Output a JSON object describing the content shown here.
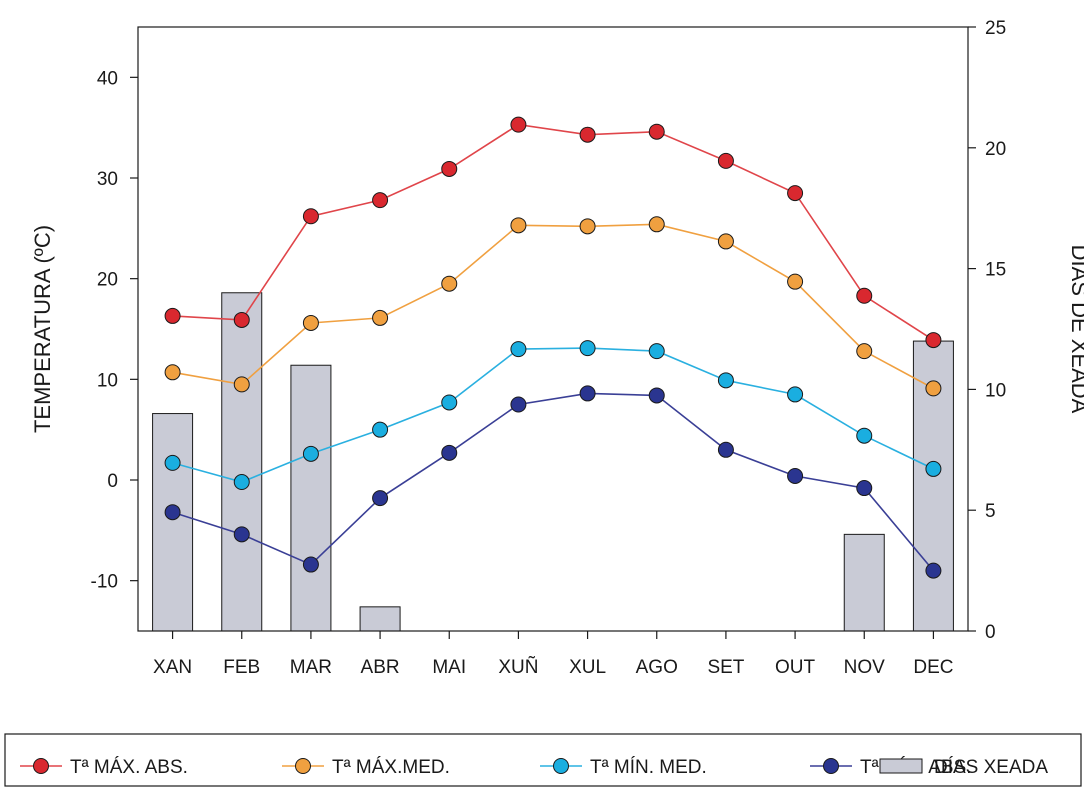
{
  "chart_data": {
    "type": "bar+line",
    "categories": [
      "XAN",
      "FEB",
      "MAR",
      "ABR",
      "MAI",
      "XUÑ",
      "XUL",
      "AGO",
      "SET",
      "OUT",
      "NOV",
      "DEC"
    ],
    "ylabel": "TEMPERATURA (ºC)",
    "y2label": "DÍAS DE XEADA",
    "ylim": [
      -15,
      45
    ],
    "y2lim": [
      0,
      25
    ],
    "yticks": [
      -10,
      0,
      10,
      20,
      30,
      40
    ],
    "y2ticks": [
      0,
      5,
      10,
      15,
      20,
      25
    ],
    "bars": {
      "name": "DÍAS XEADA",
      "axis": "right",
      "color": "#c9cbd6",
      "values": [
        9,
        14,
        11,
        1,
        0,
        0,
        0,
        0,
        0,
        0,
        4,
        12
      ]
    },
    "series": [
      {
        "name": "Tª MÁX. ABS.",
        "color": "#d9282f",
        "line_color": "#e0454a",
        "values": [
          16.3,
          15.9,
          26.2,
          27.8,
          30.9,
          35.3,
          34.3,
          34.6,
          31.7,
          28.5,
          18.3,
          13.9
        ]
      },
      {
        "name": "Tª MÁX.MED.",
        "color": "#f0a040",
        "line_color": "#f0a040",
        "values": [
          10.7,
          9.5,
          15.6,
          16.1,
          19.5,
          25.3,
          25.2,
          25.4,
          23.7,
          19.7,
          12.8,
          9.1
        ]
      },
      {
        "name": "Tª MÍN. MED.",
        "color": "#1aaee0",
        "line_color": "#2ab0e0",
        "values": [
          1.7,
          -0.2,
          2.6,
          5.0,
          7.7,
          13.0,
          13.1,
          12.8,
          9.9,
          8.5,
          4.4,
          1.1
        ]
      },
      {
        "name": "Tª MÍN. ABS.",
        "color": "#2a3590",
        "line_color": "#3a3f96",
        "values": [
          -3.2,
          -5.4,
          -8.4,
          -1.8,
          2.7,
          7.5,
          8.6,
          8.4,
          3.0,
          0.4,
          -0.8,
          -9.0
        ]
      }
    ],
    "legend_position": "bottom"
  }
}
